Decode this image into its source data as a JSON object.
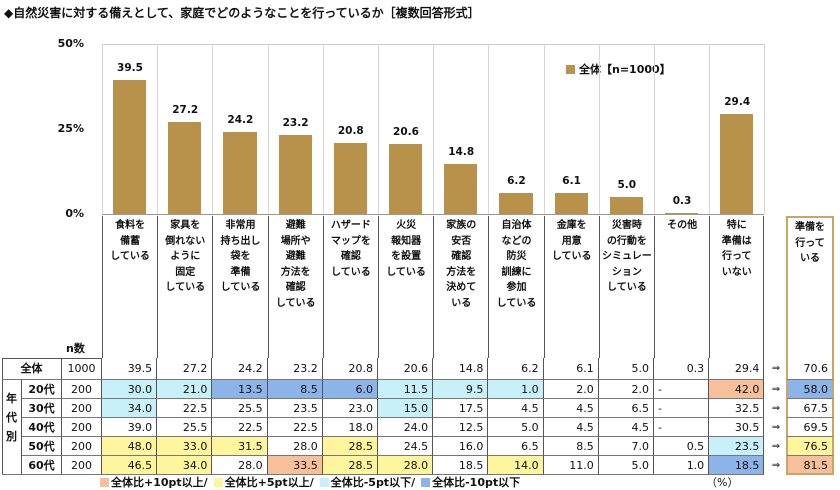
{
  "title": "◆自然災害に対する備えとして、家庭でどのようなことを行っているか［複数回答形式］",
  "colors": {
    "bar": "#B8924A",
    "plus10": "#F8C09A",
    "plus5": "#FFF59D",
    "minus5": "#C8F0F8",
    "minus10": "#8DB4E8"
  },
  "chart_data": {
    "type": "bar",
    "ylim": [
      0,
      50
    ],
    "yticks": [
      "50%",
      "25%",
      "0%"
    ],
    "legend": "全体【n=1000】",
    "legend_position": "top-right",
    "categories": [
      "食料を\n備蓄\nしている",
      "家具を\n倒れない\nように\n固定\nしている",
      "非常用\n持ち出し\n袋を\n準備\nしている",
      "避難\n場所や\n避難\n方法を\n確認\nしている",
      "ハザード\nマップを\n確認\nしている",
      "火災\n報知器\nを設置\nしている",
      "家族の\n安否\n確認\n方法を\n決めて\nいる",
      "自治体\nなどの\n防災\n訓練に\n参加\nしている",
      "金庫を\n用意\nしている",
      "災害時\nの行動を\nシミュレー\nション\nしている",
      "その他",
      "特に\n準備は\n行って\nいない"
    ],
    "values": [
      39.5,
      27.2,
      24.2,
      23.2,
      20.8,
      20.6,
      14.8,
      6.2,
      6.1,
      5.0,
      0.3,
      29.4
    ],
    "value_labels": [
      "39.5",
      "27.2",
      "24.2",
      "23.2",
      "20.8",
      "20.6",
      "14.8",
      "6.2",
      "6.1",
      "5.0",
      "0.3",
      "29.4"
    ]
  },
  "table": {
    "n_header": "n数",
    "age_group_label": "年\n代\n別",
    "extra_header": "準備を\n行って\nいる",
    "arrow": "⇒",
    "unit": "（%）",
    "rows": [
      {
        "label": "全体",
        "n": "1000",
        "values": [
          "39.5",
          "27.2",
          "24.2",
          "23.2",
          "20.8",
          "20.6",
          "14.8",
          "6.2",
          "6.1",
          "5.0",
          "0.3",
          "29.4"
        ],
        "extra": "70.6",
        "marks": [
          "",
          "",
          "",
          "",
          "",
          "",
          "",
          "",
          "",
          "",
          "",
          ""
        ],
        "extra_mark": ""
      },
      {
        "label": "20代",
        "n": "200",
        "values": [
          "30.0",
          "21.0",
          "13.5",
          "8.5",
          "6.0",
          "11.5",
          "9.5",
          "1.0",
          "2.0",
          "2.0",
          "-",
          "42.0"
        ],
        "extra": "58.0",
        "marks": [
          "minus5",
          "minus5",
          "minus10",
          "minus10",
          "minus10",
          "minus5",
          "minus5",
          "minus5",
          "",
          "",
          "",
          "plus10"
        ],
        "extra_mark": "minus10"
      },
      {
        "label": "30代",
        "n": "200",
        "values": [
          "34.0",
          "22.5",
          "25.5",
          "23.5",
          "23.0",
          "15.0",
          "17.5",
          "4.5",
          "4.5",
          "6.5",
          "-",
          "32.5"
        ],
        "extra": "67.5",
        "marks": [
          "minus5",
          "",
          "",
          "",
          "",
          "minus5",
          "",
          "",
          "",
          "",
          "",
          ""
        ],
        "extra_mark": ""
      },
      {
        "label": "40代",
        "n": "200",
        "values": [
          "39.0",
          "25.5",
          "22.5",
          "22.5",
          "18.0",
          "24.0",
          "12.5",
          "5.0",
          "4.5",
          "4.5",
          "-",
          "30.5"
        ],
        "extra": "69.5",
        "marks": [
          "",
          "",
          "",
          "",
          "",
          "",
          "",
          "",
          "",
          "",
          "",
          ""
        ],
        "extra_mark": ""
      },
      {
        "label": "50代",
        "n": "200",
        "values": [
          "48.0",
          "33.0",
          "31.5",
          "28.0",
          "28.5",
          "24.5",
          "16.0",
          "6.5",
          "8.5",
          "7.0",
          "0.5",
          "23.5"
        ],
        "extra": "76.5",
        "marks": [
          "plus5",
          "plus5",
          "plus5",
          "",
          "plus5",
          "",
          "",
          "",
          "",
          "",
          "",
          "minus5"
        ],
        "extra_mark": "plus5"
      },
      {
        "label": "60代",
        "n": "200",
        "values": [
          "46.5",
          "34.0",
          "28.0",
          "33.5",
          "28.5",
          "28.0",
          "18.5",
          "14.0",
          "11.0",
          "5.0",
          "1.0",
          "18.5"
        ],
        "extra": "81.5",
        "marks": [
          "plus5",
          "plus5",
          "",
          "plus10",
          "plus5",
          "plus5",
          "",
          "plus5",
          "",
          "",
          "",
          "minus10"
        ],
        "extra_mark": "plus10"
      }
    ]
  },
  "legend_items": [
    {
      "key": "plus10",
      "label": "全体比+10pt以上/"
    },
    {
      "key": "plus5",
      "label": "全体比+5pt以上/"
    },
    {
      "key": "minus5",
      "label": "全体比-5pt以下/"
    },
    {
      "key": "minus10",
      "label": "全体比-10pt以下"
    }
  ]
}
